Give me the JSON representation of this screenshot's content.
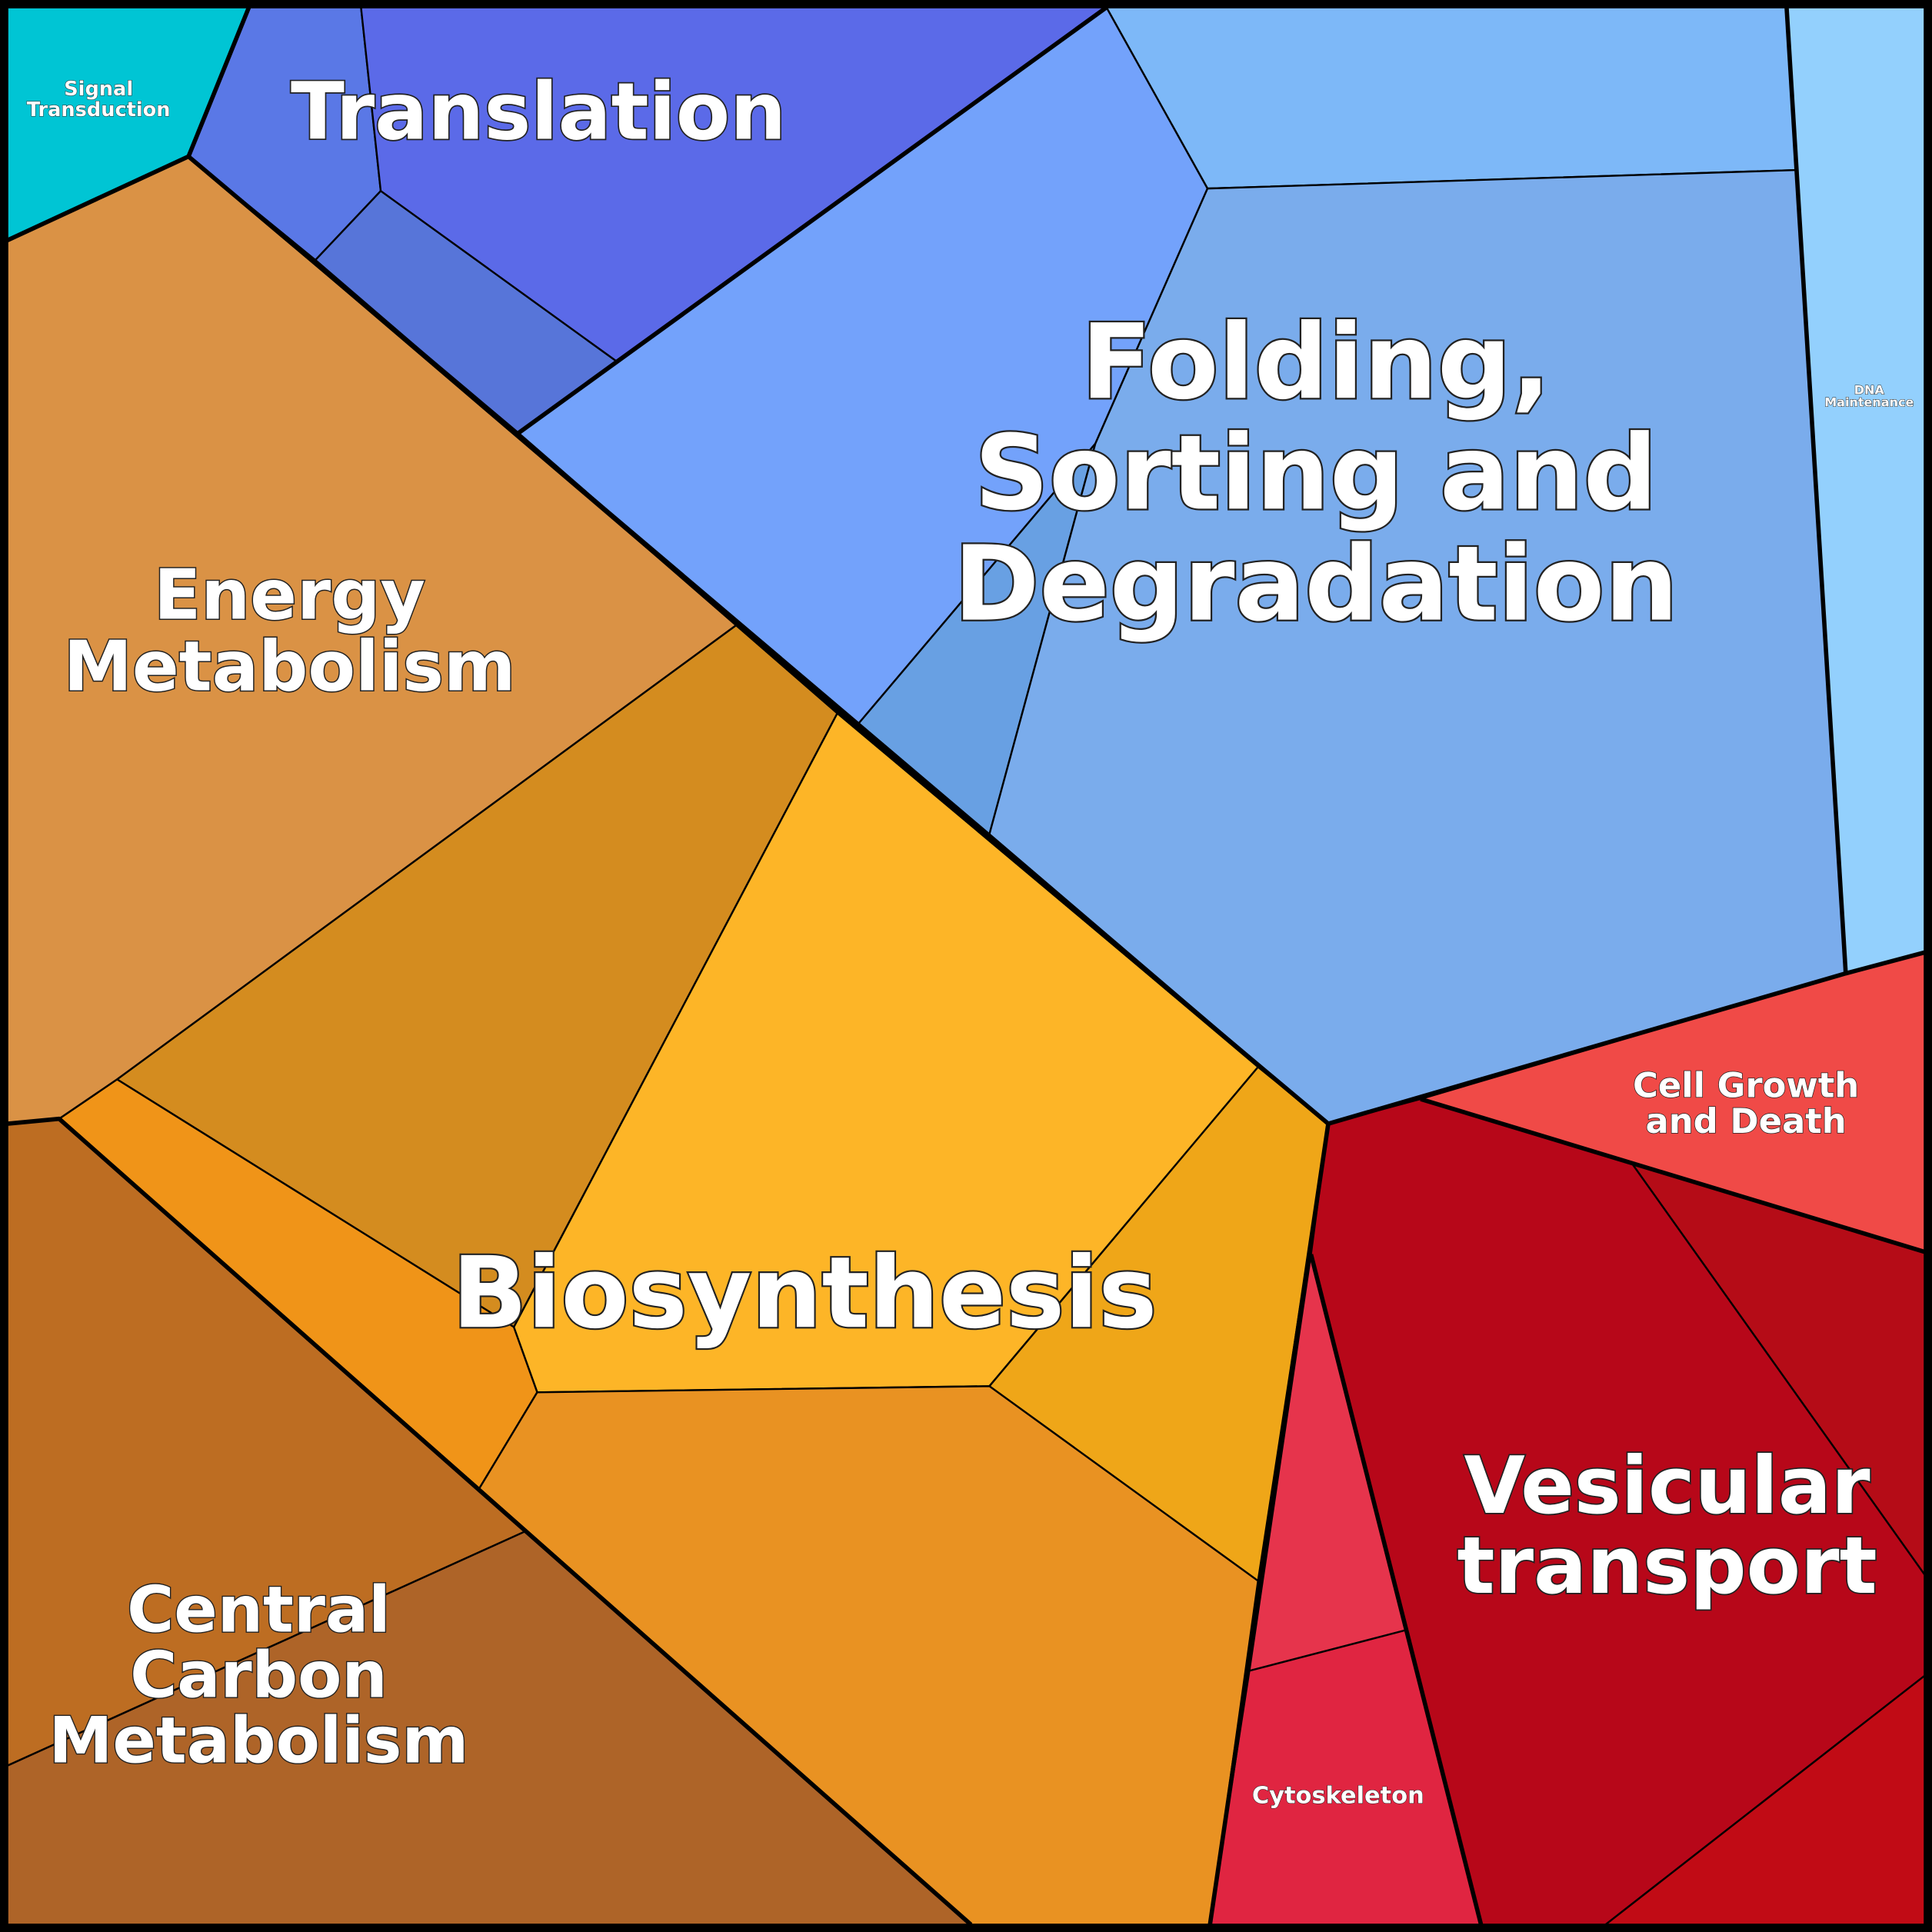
{
  "cells": [
    {
      "lines": [
        "Signal",
        "Transduction"
      ]
    },
    {
      "lines": [
        "Translation"
      ]
    },
    {
      "lines": [
        "Folding,",
        "Sorting and",
        "Degradation"
      ]
    },
    {
      "lines": [
        "DNA",
        "Maintenance"
      ]
    },
    {
      "lines": [
        "Energy",
        "Metabolism"
      ]
    },
    {
      "lines": [
        "Biosynthesis"
      ]
    },
    {
      "lines": [
        "Cell Growth",
        "and Death"
      ]
    },
    {
      "lines": [
        "Vesicular",
        "transport"
      ]
    },
    {
      "lines": [
        "Cytoskeleton"
      ]
    },
    {
      "lines": [
        "Central",
        "Carbon",
        "Metabolism"
      ]
    }
  ]
}
